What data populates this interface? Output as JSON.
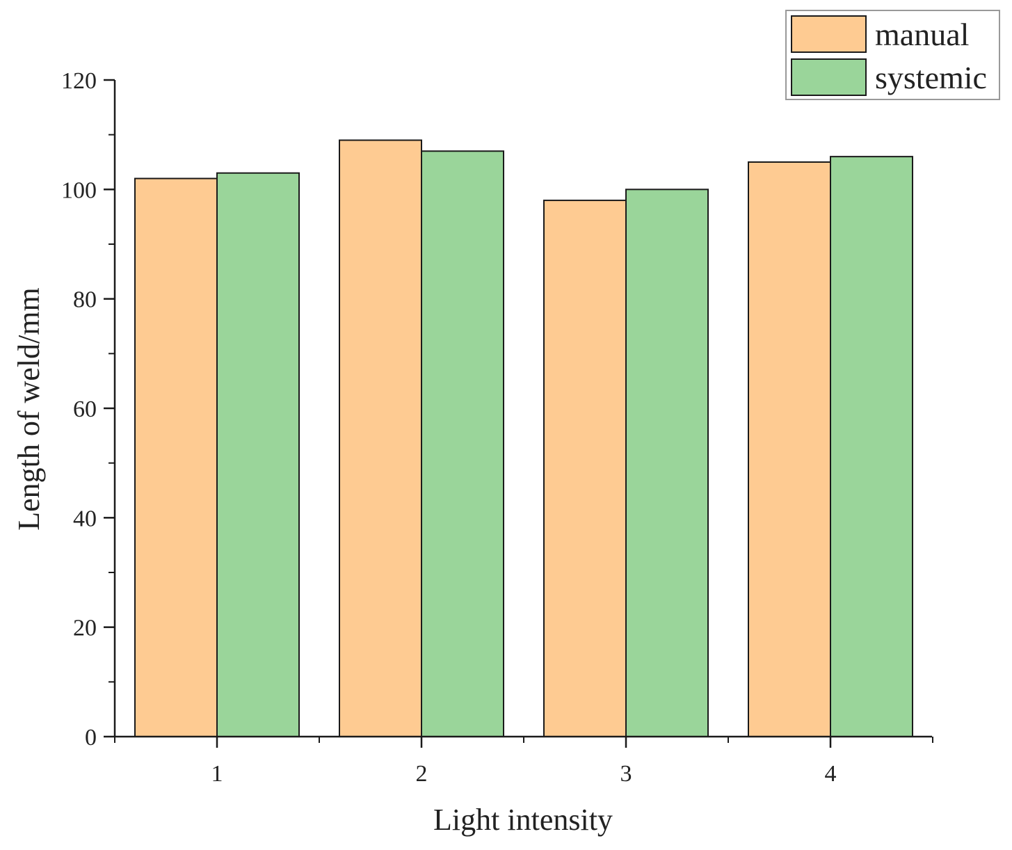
{
  "chart_data": {
    "type": "bar",
    "xlabel": "Light intensity",
    "ylabel": "Length of weld/mm",
    "categories": [
      "1",
      "2",
      "3",
      "4"
    ],
    "series": [
      {
        "name": "manual",
        "color": "#FECB92",
        "values": [
          102,
          109,
          98,
          105
        ]
      },
      {
        "name": "systemic",
        "color": "#9AD59A",
        "values": [
          103,
          107,
          100,
          106
        ]
      }
    ],
    "ylim": [
      0,
      120
    ],
    "yticks": [
      0,
      20,
      40,
      60,
      80,
      100,
      120
    ],
    "yticks_minor_step": 10,
    "grid": false,
    "legend_position": "top-right"
  }
}
